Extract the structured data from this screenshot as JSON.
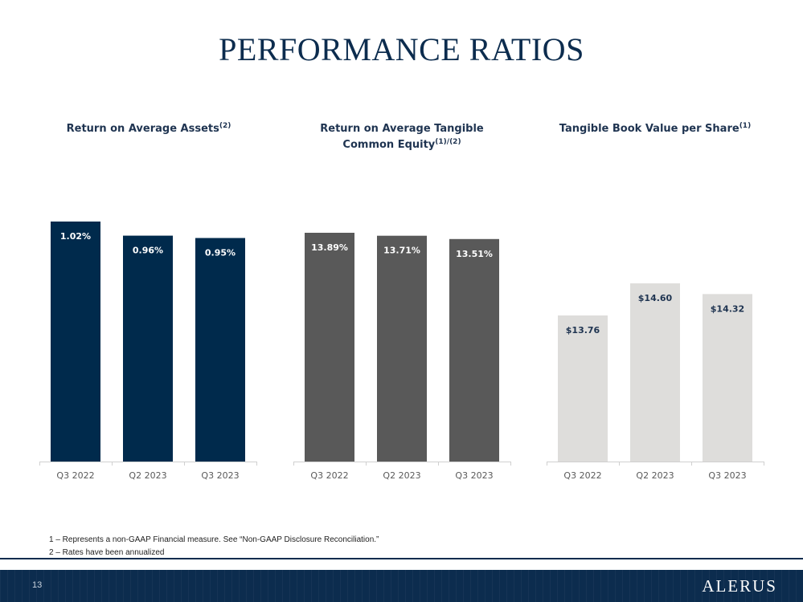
{
  "slide": {
    "title": "PERFORMANCE RATIOS",
    "page_number": "13",
    "logo_text": "ALERUS"
  },
  "footnotes": [
    "1 – Represents a non-GAAP Financial measure. See “Non-GAAP Disclosure Reconciliation.”",
    "2 – Rates have been annualized"
  ],
  "colors": {
    "title": "#0c2c4e",
    "footer": "#0c2c4e"
  },
  "chart_data": [
    {
      "type": "bar",
      "title": "Return on Average Assets",
      "title_superscript": "(2)",
      "categories": [
        "Q3 2022",
        "Q2 2023",
        "Q3 2023"
      ],
      "values": [
        1.02,
        0.96,
        0.95
      ],
      "labels": [
        "1.02%",
        "0.96%",
        "0.95%"
      ],
      "ylim": [
        0,
        1.02
      ],
      "bar_color": "#002a4c",
      "label_color": "#ffffff"
    },
    {
      "type": "bar",
      "title": "Return on Average Tangible Common Equity",
      "title_line1": "Return on Average Tangible",
      "title_line2": "Common Equity",
      "title_superscript": "(1)/(2)",
      "categories": [
        "Q3 2022",
        "Q2 2023",
        "Q3 2023"
      ],
      "values": [
        13.89,
        13.71,
        13.51
      ],
      "labels": [
        "13.89%",
        "13.71%",
        "13.51%"
      ],
      "ylim": [
        0,
        13.89
      ],
      "bar_color": "#595959",
      "label_color": "#ffffff"
    },
    {
      "type": "bar",
      "title": "Tangible Book Value per Share",
      "title_superscript": "(1)",
      "categories": [
        "Q3 2022",
        "Q2 2023",
        "Q3 2023"
      ],
      "values": [
        13.76,
        14.6,
        14.32
      ],
      "labels": [
        "$13.76",
        "$14.60",
        "$14.32"
      ],
      "bar_color": "#dedddb",
      "label_color": "#1f3451"
    }
  ]
}
